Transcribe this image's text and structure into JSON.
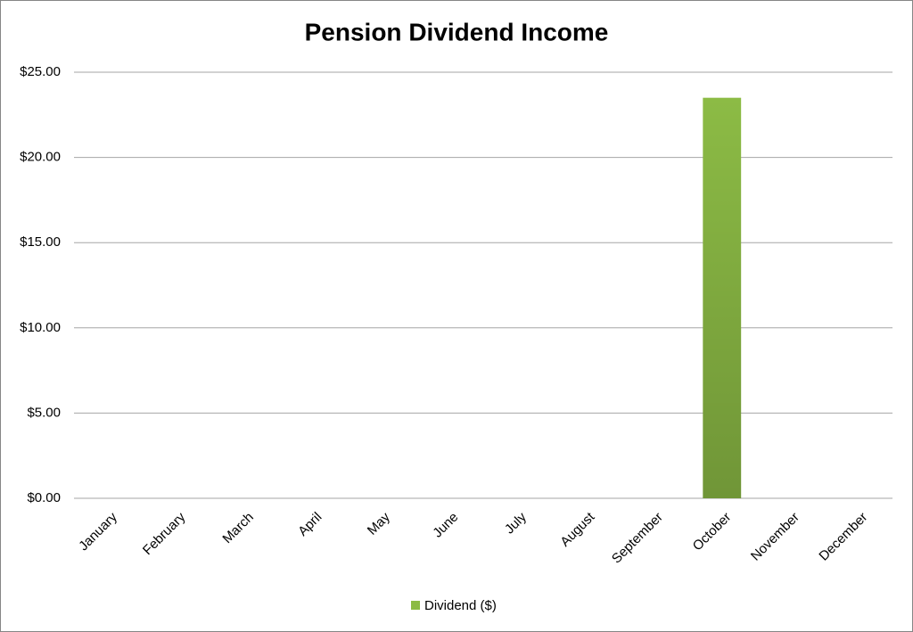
{
  "chart_data": {
    "type": "bar",
    "title": "Pension Dividend Income",
    "categories": [
      "January",
      "February",
      "March",
      "April",
      "May",
      "June",
      "July",
      "August",
      "September",
      "October",
      "November",
      "December"
    ],
    "series": [
      {
        "name": "Dividend ($)",
        "color": "#8cbb45",
        "values": [
          0,
          0,
          0,
          0,
          0,
          0,
          0,
          0,
          0,
          23.5,
          0,
          0
        ]
      }
    ],
    "ylim": [
      0,
      25
    ],
    "yticks": [
      {
        "value": 0,
        "label": "$0.00"
      },
      {
        "value": 5,
        "label": "$5.00"
      },
      {
        "value": 10,
        "label": "$10.00"
      },
      {
        "value": 15,
        "label": "$15.00"
      },
      {
        "value": 20,
        "label": "$20.00"
      },
      {
        "value": 25,
        "label": "$25.00"
      }
    ],
    "grid": true,
    "legend": "bottom"
  }
}
